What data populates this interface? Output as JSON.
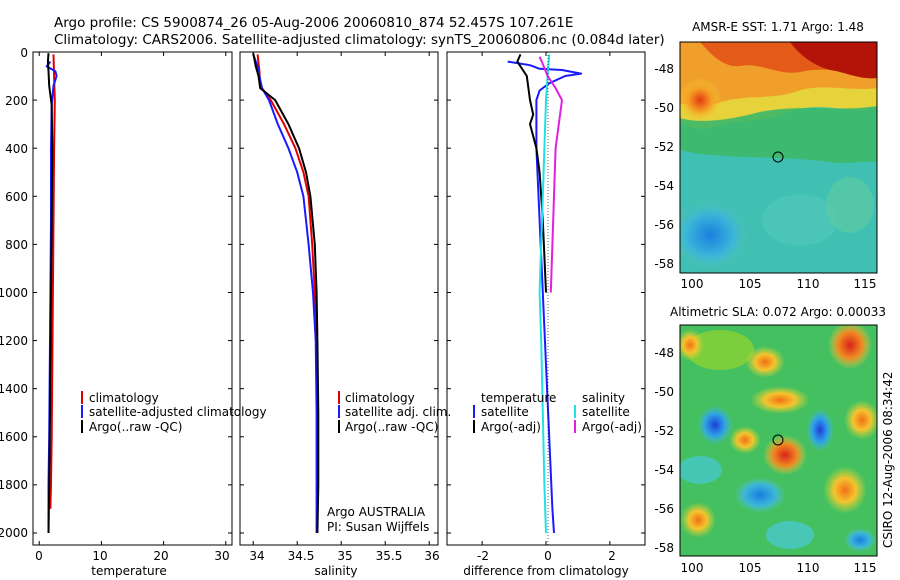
{
  "header": {
    "line1": "Argo profile: CS 5900874_26 05-Aug-2006 20060810_874 52.457S 107.261E",
    "line2": "Climatology: CARS2006. Satellite-adjusted climatology: synTS_20060806.nc (0.084d later)"
  },
  "side_label": "CSIRO 12-Aug-2006 08:34:42",
  "colors": {
    "climatology": "#e00000",
    "satellite": "#1a1aff",
    "argo": "#000000",
    "sat_sal": "#22e0e8",
    "argo_sal": "#e020e0"
  },
  "chart_data": [
    {
      "type": "line",
      "id": "temperature",
      "xlabel": "temperature",
      "ylabel": "",
      "xlim": [
        -1,
        31
      ],
      "ylim": [
        2050,
        0
      ],
      "xticks": [
        0,
        10,
        20,
        30
      ],
      "yticks": [
        0,
        200,
        400,
        600,
        800,
        1000,
        1200,
        1400,
        1600,
        1800,
        2000
      ],
      "legend": [
        "climatology",
        "satellite-adjusted climatology",
        "Argo(..raw -QC)"
      ],
      "series": [
        {
          "name": "climatology",
          "color": "#e00000",
          "points": [
            [
              2.3,
              10
            ],
            [
              2.4,
              100
            ],
            [
              2.5,
              200
            ],
            [
              2.4,
              400
            ],
            [
              2.3,
              700
            ],
            [
              2.2,
              1000
            ],
            [
              2.1,
              1300
            ],
            [
              2.0,
              1600
            ],
            [
              1.9,
              1800
            ],
            [
              1.8,
              1900
            ]
          ]
        },
        {
          "name": "satellite-adjusted climatology",
          "color": "#1a1aff",
          "points": [
            [
              1.8,
              40
            ],
            [
              1.2,
              60
            ],
            [
              2.6,
              80
            ],
            [
              2.8,
              100
            ],
            [
              2.3,
              140
            ],
            [
              2.0,
              220
            ],
            [
              1.9,
              400
            ],
            [
              1.9,
              700
            ],
            [
              1.8,
              1000
            ],
            [
              1.7,
              1300
            ],
            [
              1.6,
              1600
            ],
            [
              1.5,
              1800
            ],
            [
              1.5,
              2000
            ]
          ]
        },
        {
          "name": "Argo(..raw -QC)",
          "color": "#000000",
          "points": [
            [
              1.5,
              5
            ],
            [
              1.4,
              40
            ],
            [
              1.5,
              80
            ],
            [
              1.6,
              140
            ],
            [
              1.8,
              180
            ],
            [
              2.0,
              220
            ],
            [
              2.1,
              400
            ],
            [
              2.0,
              700
            ],
            [
              1.9,
              1000
            ],
            [
              1.8,
              1300
            ],
            [
              1.7,
              1600
            ],
            [
              1.6,
              1800
            ],
            [
              1.5,
              2000
            ]
          ]
        }
      ]
    },
    {
      "type": "line",
      "id": "salinity",
      "xlabel": "salinity",
      "ylabel": "",
      "xlim": [
        33.85,
        36.1
      ],
      "ylim": [
        2050,
        0
      ],
      "xticks": [
        34,
        34.5,
        35,
        35.5,
        36
      ],
      "legend": [
        "climatology",
        "satellite adj. clim.",
        "Argo(..raw -QC)"
      ],
      "annotation": [
        "Argo AUSTRALIA",
        "PI: Susan Wijffels"
      ],
      "series": [
        {
          "name": "climatology",
          "color": "#e00000",
          "points": [
            [
              34.05,
              10
            ],
            [
              34.07,
              80
            ],
            [
              34.08,
              140
            ],
            [
              34.2,
              200
            ],
            [
              34.35,
              300
            ],
            [
              34.48,
              400
            ],
            [
              34.57,
              500
            ],
            [
              34.63,
              600
            ],
            [
              34.67,
              800
            ],
            [
              34.7,
              1000
            ],
            [
              34.72,
              1200
            ],
            [
              34.73,
              1500
            ],
            [
              34.73,
              1800
            ],
            [
              34.73,
              1900
            ]
          ]
        },
        {
          "name": "satellite adj. clim.",
          "color": "#1a1aff",
          "points": [
            [
              34.0,
              10
            ],
            [
              34.05,
              60
            ],
            [
              34.07,
              100
            ],
            [
              34.1,
              150
            ],
            [
              34.18,
              200
            ],
            [
              34.28,
              300
            ],
            [
              34.4,
              400
            ],
            [
              34.5,
              500
            ],
            [
              34.57,
              600
            ],
            [
              34.63,
              800
            ],
            [
              34.68,
              1000
            ],
            [
              34.71,
              1200
            ],
            [
              34.72,
              1500
            ],
            [
              34.72,
              1800
            ],
            [
              34.72,
              2000
            ]
          ]
        },
        {
          "name": "Argo(..raw -QC)",
          "color": "#000000",
          "points": [
            [
              34.0,
              5
            ],
            [
              34.03,
              60
            ],
            [
              34.06,
              100
            ],
            [
              34.08,
              150
            ],
            [
              34.25,
              200
            ],
            [
              34.4,
              300
            ],
            [
              34.52,
              400
            ],
            [
              34.6,
              500
            ],
            [
              34.65,
              600
            ],
            [
              34.7,
              800
            ],
            [
              34.72,
              1000
            ],
            [
              34.73,
              1200
            ],
            [
              34.74,
              1500
            ],
            [
              34.74,
              1800
            ],
            [
              34.73,
              2000
            ]
          ]
        }
      ]
    },
    {
      "type": "line",
      "id": "difference",
      "xlabel": "difference from climatology",
      "ylabel": "",
      "xlim": [
        -3.1,
        3.1
      ],
      "ylim": [
        2050,
        0
      ],
      "xticks": [
        -2,
        0,
        2
      ],
      "legend_titles": [
        "temperature",
        "salinity"
      ],
      "legend": [
        "satellite",
        "Argo(-adj)",
        "satellite",
        "Argo(-adj)"
      ],
      "series": [
        {
          "name": "temperature satellite",
          "color": "#1a1aff",
          "points": [
            [
              -1.2,
              40
            ],
            [
              -0.5,
              55
            ],
            [
              -0.2,
              70
            ],
            [
              0.5,
              75
            ],
            [
              1.1,
              90
            ],
            [
              0.6,
              100
            ],
            [
              0.1,
              130
            ],
            [
              -0.2,
              160
            ],
            [
              -0.3,
              200
            ],
            [
              -0.3,
              400
            ],
            [
              -0.2,
              700
            ],
            [
              -0.1,
              1000
            ],
            [
              0.0,
              1300
            ],
            [
              0.1,
              1600
            ],
            [
              0.2,
              1900
            ],
            [
              0.25,
              2000
            ]
          ]
        },
        {
          "name": "temperature Argo(-adj)",
          "color": "#000000",
          "points": [
            [
              -0.8,
              10
            ],
            [
              -0.9,
              40
            ],
            [
              -0.6,
              100
            ],
            [
              -0.5,
              200
            ],
            [
              -0.4,
              260
            ],
            [
              -0.5,
              300
            ],
            [
              -0.3,
              400
            ],
            [
              -0.2,
              500
            ],
            [
              -0.1,
              700
            ],
            [
              0.0,
              1000
            ]
          ]
        },
        {
          "name": "salinity satellite",
          "color": "#22e0e8",
          "points": [
            [
              0.1,
              10
            ],
            [
              0.05,
              100
            ],
            [
              0.0,
              200
            ],
            [
              -0.05,
              400
            ],
            [
              -0.1,
              600
            ],
            [
              -0.15,
              800
            ],
            [
              -0.2,
              1000
            ],
            [
              -0.15,
              1200
            ],
            [
              -0.1,
              1500
            ],
            [
              -0.05,
              1800
            ],
            [
              0.0,
              2000
            ]
          ]
        },
        {
          "name": "salinity Argo(-adj)",
          "color": "#e020e0",
          "points": [
            [
              -0.2,
              20
            ],
            [
              -0.1,
              50
            ],
            [
              0.05,
              100
            ],
            [
              0.3,
              150
            ],
            [
              0.5,
              200
            ],
            [
              0.4,
              300
            ],
            [
              0.3,
              400
            ],
            [
              0.25,
              600
            ],
            [
              0.2,
              800
            ],
            [
              0.15,
              1000
            ]
          ]
        }
      ]
    },
    {
      "type": "heatmap",
      "id": "sst",
      "title": "AMSR-E SST: 1.71 Argo: 1.48",
      "xlim": [
        99,
        116
      ],
      "ylim": [
        -58.6,
        -46.6
      ],
      "xticks": [
        100,
        105,
        110,
        115
      ],
      "yticks": [
        -48,
        -50,
        -52,
        -54,
        -56,
        -58
      ],
      "marker": [
        107.26,
        -52.46
      ]
    },
    {
      "type": "heatmap",
      "id": "sla",
      "title": "Altimetric SLA: 0.072 Argo: 0.00033",
      "xlim": [
        99,
        116
      ],
      "ylim": [
        -58.6,
        -46.6
      ],
      "xticks": [
        100,
        105,
        110,
        115
      ],
      "yticks": [
        -48,
        -50,
        -52,
        -54,
        -56,
        -58
      ],
      "marker": [
        107.26,
        -52.46
      ]
    }
  ]
}
